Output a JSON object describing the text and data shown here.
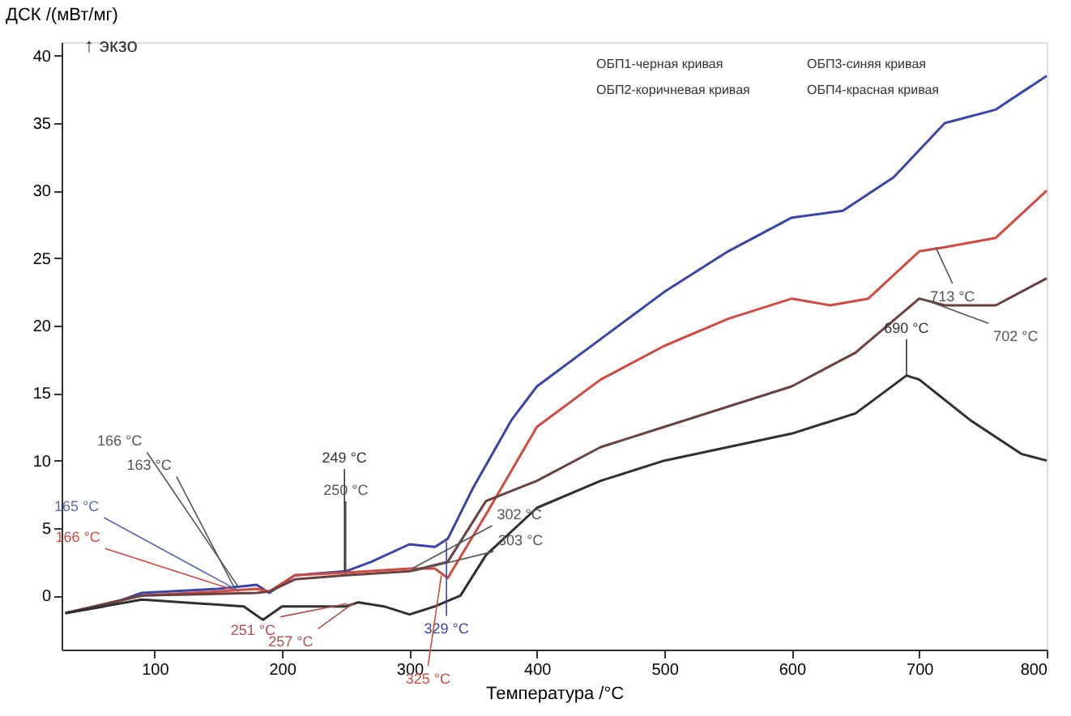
{
  "chart_data": {
    "type": "line",
    "xlabel": "Температура /°C",
    "ylabel": "ДСК /(мВт/мг)",
    "xlim": [
      27,
      800
    ],
    "xticks": [
      100,
      200,
      300,
      400,
      500,
      600,
      700,
      800
    ],
    "ylim": [
      -4,
      41
    ],
    "yticks": [
      0,
      5,
      10,
      15,
      20,
      25,
      30,
      35,
      40
    ],
    "grid": false,
    "line_style": "solid",
    "marker": "none",
    "series": [
      {
        "color": "#3a44a8",
        "x": [
          30,
          60,
          90,
          150,
          180,
          190,
          210,
          250,
          270,
          300,
          320,
          330,
          350,
          380,
          400,
          450,
          500,
          550,
          600,
          640,
          680,
          720,
          760,
          800
        ],
        "values": [
          -1.3,
          -0.8,
          0.2,
          0.5,
          0.8,
          0.2,
          1.5,
          1.8,
          2.5,
          3.8,
          3.6,
          4.2,
          8,
          13,
          15.5,
          19,
          22.5,
          25.5,
          28,
          28.5,
          31,
          35,
          36,
          38.5
        ]
      },
      {
        "color": "#d04a40",
        "x": [
          30,
          90,
          150,
          180,
          190,
          210,
          250,
          300,
          320,
          330,
          360,
          400,
          450,
          500,
          550,
          600,
          630,
          660,
          700,
          720,
          760,
          800
        ],
        "values": [
          -1.3,
          0,
          0.3,
          0.5,
          0.3,
          1.5,
          1.7,
          2,
          2,
          1.3,
          6,
          12.5,
          16,
          18.5,
          20.5,
          22,
          21.5,
          22,
          25.5,
          25.8,
          26.5,
          30
        ]
      },
      {
        "color": "#6a4040",
        "x": [
          30,
          90,
          180,
          190,
          210,
          250,
          300,
          330,
          360,
          400,
          450,
          500,
          550,
          600,
          650,
          700,
          720,
          760,
          800
        ],
        "values": [
          -1.3,
          0,
          0.2,
          0.3,
          1.2,
          1.5,
          1.8,
          2.5,
          7,
          8.5,
          11,
          12.5,
          14,
          15.5,
          18,
          22,
          21.5,
          21.5,
          23.5
        ]
      },
      {
        "color": "#303030",
        "x": [
          30,
          90,
          170,
          185,
          200,
          250,
          260,
          280,
          300,
          320,
          340,
          360,
          400,
          450,
          500,
          550,
          600,
          650,
          690,
          700,
          740,
          780,
          800
        ],
        "values": [
          -1.3,
          -0.3,
          -0.8,
          -1.8,
          -0.8,
          -0.8,
          -0.5,
          -0.8,
          -1.4,
          -0.8,
          0,
          3,
          6.5,
          8.5,
          10,
          11,
          12,
          13.5,
          16.3,
          16,
          13,
          10.5,
          10
        ]
      }
    ],
    "annotations": [
      "↑ экзо",
      "ОБП1-черная кривая",
      "ОБП2-коричневая кривая",
      "ОБП3-синяя кривая",
      "ОБП4-красная кривая",
      {
        "text": "166 °C",
        "x": 166,
        "y": 0.6
      },
      {
        "text": "163 °C",
        "x": 163,
        "y": 0.5
      },
      {
        "text": "165 °C",
        "x": 165,
        "y": 0.4
      },
      {
        "text": "166 °C",
        "x": 166,
        "y": 0.3
      },
      {
        "text": "249 °C",
        "x": 249,
        "y": 1.8
      },
      {
        "text": "250 °C",
        "x": 250,
        "y": 1.6
      },
      {
        "text": "251 °C",
        "x": 251,
        "y": -0.6
      },
      {
        "text": "257 °C",
        "x": 257,
        "y": -0.5
      },
      {
        "text": "302 °C",
        "x": 302,
        "y": 2
      },
      {
        "text": "303 °C",
        "x": 303,
        "y": 1.8
      },
      {
        "text": "329 °C",
        "x": 329,
        "y": 4.0
      },
      {
        "text": "325 °C",
        "x": 325,
        "y": 1.5
      },
      {
        "text": "713 °C",
        "x": 713,
        "y": 25.8
      },
      {
        "text": "702 °C",
        "x": 702,
        "y": 22
      },
      {
        "text": "690 °C",
        "x": 690,
        "y": 16.3
      }
    ]
  }
}
